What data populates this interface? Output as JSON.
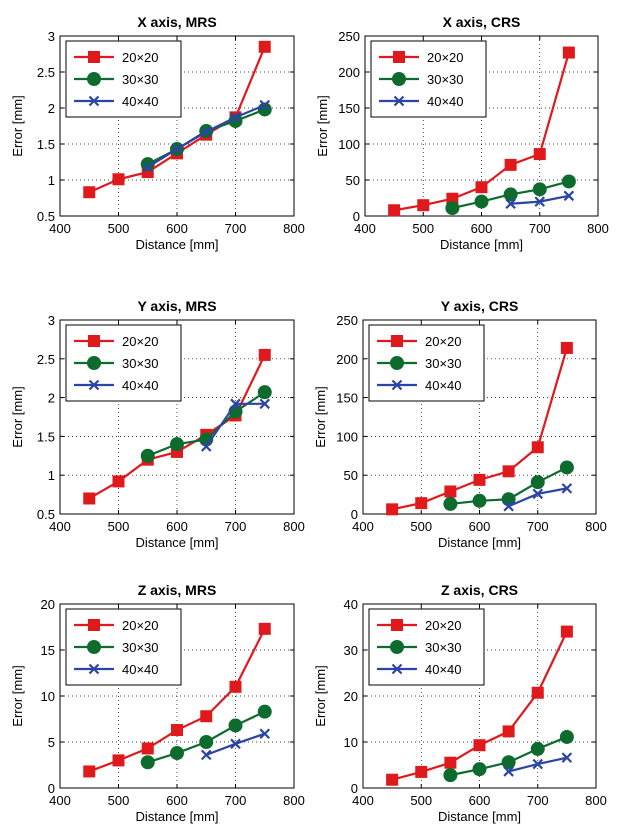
{
  "figure": {
    "charts": [
      {
        "id": "x-mrs",
        "title": "X axis, MRS",
        "xlabel": "Distance [mm]",
        "ylabel": "Error [mm]"
      },
      {
        "id": "x-crs",
        "title": "X axis, CRS",
        "xlabel": "Distance [mm]",
        "ylabel": "Error [mm]"
      },
      {
        "id": "y-mrs",
        "title": "Y axis, MRS",
        "xlabel": "Distance [mm]",
        "ylabel": "Error [mm]"
      },
      {
        "id": "y-crs",
        "title": "Y axis, CRS",
        "xlabel": "Distance [mm]",
        "ylabel": "Error [mm]"
      },
      {
        "id": "z-mrs",
        "title": "Z axis, MRS",
        "xlabel": "Distance [mm]",
        "ylabel": "Error [mm]"
      },
      {
        "id": "z-crs",
        "title": "Z axis, CRS",
        "xlabel": "Distance [mm]",
        "ylabel": "Error [mm]"
      }
    ],
    "colors": {
      "20x20": "#e0191c",
      "30x30": "#0e6b2e",
      "40x40": "#2b45a4",
      "grid": "#000000"
    }
  },
  "chart_data": [
    {
      "type": "line",
      "title": "X axis, MRS",
      "xlabel": "Distance [mm]",
      "ylabel": "Error [mm]",
      "xlim": [
        400,
        800
      ],
      "ylim": [
        0.5,
        3
      ],
      "xticks": [
        400,
        500,
        600,
        700,
        800
      ],
      "yticks": [
        0.5,
        1,
        1.5,
        2,
        2.5,
        3
      ],
      "grid": true,
      "legend": "top-left",
      "series": [
        {
          "name": "20×20",
          "marker": "square",
          "x": [
            450,
            500,
            550,
            600,
            650,
            700,
            750
          ],
          "y": [
            0.83,
            1.01,
            1.11,
            1.37,
            1.63,
            1.87,
            2.85
          ]
        },
        {
          "name": "30×30",
          "marker": "circle",
          "x": [
            550,
            600,
            650,
            700,
            750
          ],
          "y": [
            1.22,
            1.43,
            1.68,
            1.82,
            1.98
          ]
        },
        {
          "name": "40×40",
          "marker": "x",
          "x": [
            550,
            600,
            650,
            700,
            750
          ],
          "y": [
            1.18,
            1.43,
            1.67,
            1.87,
            2.04
          ]
        }
      ]
    },
    {
      "type": "line",
      "title": "X axis, CRS",
      "xlabel": "Distance [mm]",
      "ylabel": "Error [mm]",
      "xlim": [
        400,
        800
      ],
      "ylim": [
        0,
        250
      ],
      "xticks": [
        400,
        500,
        600,
        700,
        800
      ],
      "yticks": [
        0,
        50,
        100,
        150,
        200,
        250
      ],
      "grid": true,
      "legend": "top-left",
      "series": [
        {
          "name": "20×20",
          "marker": "square",
          "x": [
            450,
            500,
            550,
            600,
            650,
            700,
            750
          ],
          "y": [
            8,
            15,
            24,
            40,
            71,
            86,
            227
          ]
        },
        {
          "name": "30×30",
          "marker": "circle",
          "x": [
            550,
            600,
            650,
            700,
            750
          ],
          "y": [
            11,
            20,
            30,
            37,
            48
          ]
        },
        {
          "name": "40×40",
          "marker": "x",
          "x": [
            650,
            700,
            750
          ],
          "y": [
            17,
            20,
            28
          ]
        }
      ]
    },
    {
      "type": "line",
      "title": "Y axis, MRS",
      "xlabel": "Distance [mm]",
      "ylabel": "Error [mm]",
      "xlim": [
        400,
        800
      ],
      "ylim": [
        0.5,
        3
      ],
      "xticks": [
        400,
        500,
        600,
        700,
        800
      ],
      "yticks": [
        0.5,
        1,
        1.5,
        2,
        2.5,
        3
      ],
      "grid": true,
      "legend": "top-left",
      "series": [
        {
          "name": "20×20",
          "marker": "square",
          "x": [
            450,
            500,
            550,
            600,
            650,
            700,
            750
          ],
          "y": [
            0.7,
            0.92,
            1.2,
            1.3,
            1.52,
            1.77,
            2.55
          ]
        },
        {
          "name": "30×30",
          "marker": "circle",
          "x": [
            550,
            600,
            650,
            700,
            750
          ],
          "y": [
            1.25,
            1.4,
            1.46,
            1.82,
            2.07
          ]
        },
        {
          "name": "40×40",
          "marker": "x",
          "x": [
            650,
            700,
            750
          ],
          "y": [
            1.37,
            1.92,
            1.92
          ]
        }
      ]
    },
    {
      "type": "line",
      "title": "Y axis, CRS",
      "xlabel": "Distance [mm]",
      "ylabel": "Error [mm]",
      "xlim": [
        400,
        800
      ],
      "ylim": [
        0,
        250
      ],
      "xticks": [
        400,
        500,
        600,
        700,
        800
      ],
      "yticks": [
        0,
        50,
        100,
        150,
        200,
        250
      ],
      "grid": true,
      "legend": "top-left",
      "series": [
        {
          "name": "20×20",
          "marker": "square",
          "x": [
            450,
            500,
            550,
            600,
            650,
            700,
            750
          ],
          "y": [
            6,
            14,
            29,
            44,
            55,
            86,
            214
          ]
        },
        {
          "name": "30×30",
          "marker": "circle",
          "x": [
            550,
            600,
            650,
            700,
            750
          ],
          "y": [
            13,
            17,
            19,
            41,
            60
          ]
        },
        {
          "name": "40×40",
          "marker": "x",
          "x": [
            650,
            700,
            750
          ],
          "y": [
            10,
            26,
            33
          ]
        }
      ]
    },
    {
      "type": "line",
      "title": "Z axis, MRS",
      "xlabel": "Distance [mm]",
      "ylabel": "Error [mm]",
      "xlim": [
        400,
        800
      ],
      "ylim": [
        0,
        20
      ],
      "xticks": [
        400,
        500,
        600,
        700,
        800
      ],
      "yticks": [
        0,
        5,
        10,
        15,
        20
      ],
      "grid": true,
      "legend": "top-left",
      "series": [
        {
          "name": "20×20",
          "marker": "square",
          "x": [
            450,
            500,
            550,
            600,
            650,
            700,
            750
          ],
          "y": [
            1.8,
            3.0,
            4.3,
            6.3,
            7.8,
            11.0,
            17.3
          ]
        },
        {
          "name": "30×30",
          "marker": "circle",
          "x": [
            550,
            600,
            650,
            700,
            750
          ],
          "y": [
            2.8,
            3.8,
            5.0,
            6.8,
            8.3
          ]
        },
        {
          "name": "40×40",
          "marker": "x",
          "x": [
            650,
            700,
            750
          ],
          "y": [
            3.6,
            4.8,
            5.9
          ]
        }
      ]
    },
    {
      "type": "line",
      "title": "Z axis, CRS",
      "xlabel": "Distance [mm]",
      "ylabel": "Error [mm]",
      "xlim": [
        400,
        800
      ],
      "ylim": [
        0,
        40
      ],
      "xticks": [
        400,
        500,
        600,
        700,
        800
      ],
      "yticks": [
        0,
        10,
        20,
        30,
        40
      ],
      "grid": true,
      "legend": "top-left",
      "series": [
        {
          "name": "20×20",
          "marker": "square",
          "x": [
            450,
            500,
            550,
            600,
            650,
            700,
            750
          ],
          "y": [
            1.8,
            3.5,
            5.5,
            9.3,
            12.3,
            20.7,
            34.0
          ]
        },
        {
          "name": "30×30",
          "marker": "circle",
          "x": [
            550,
            600,
            650,
            700,
            750
          ],
          "y": [
            2.8,
            4.1,
            5.6,
            8.5,
            11.1
          ]
        },
        {
          "name": "40×40",
          "marker": "x",
          "x": [
            650,
            700,
            750
          ],
          "y": [
            3.6,
            5.2,
            6.6
          ]
        }
      ]
    }
  ]
}
